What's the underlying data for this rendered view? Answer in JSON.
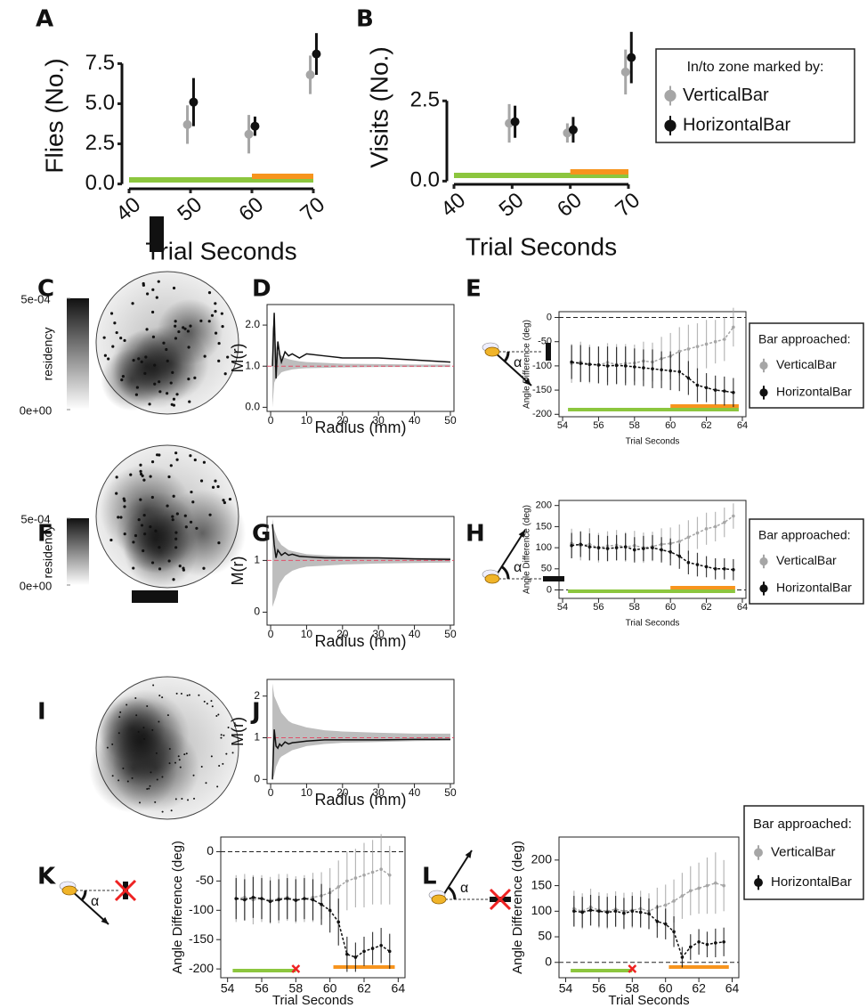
{
  "chart_data": [
    {
      "type": "errorbar",
      "panel": "A",
      "xlabel": "Trial Seconds",
      "ylabel": "Flies (No.)",
      "xlim": [
        40,
        70
      ],
      "ylim": [
        -0.3,
        8.8
      ],
      "xticks": [
        40,
        50,
        60,
        70
      ],
      "yticks": [
        {
          "value": 0,
          "label": "0.0"
        },
        {
          "value": 2.5,
          "label": "2.5"
        },
        {
          "value": 5,
          "label": "5.0"
        },
        {
          "value": 7.5,
          "label": "7.5"
        }
      ],
      "series": [
        {
          "color": "#a6a6a6",
          "x": [
            49.5,
            59.5,
            69.5
          ],
          "values": [
            3.7,
            3.1,
            6.8
          ],
          "errors": [
            1.2,
            1.2,
            1.2
          ]
        },
        {
          "color": "#111111",
          "x": [
            50.5,
            60.5,
            70.5
          ],
          "values": [
            5.1,
            3.6,
            8.1
          ],
          "errors": [
            1.5,
            0.6,
            1.3
          ]
        }
      ],
      "stimulus": [
        {
          "color": "#8cc63e",
          "start": 40,
          "end": 70
        },
        {
          "color": "#f7941d",
          "start": 60,
          "end": 70
        }
      ]
    },
    {
      "type": "errorbar",
      "panel": "B",
      "xlabel": "Trial Seconds",
      "ylabel": "Visits (No.)",
      "xlim": [
        40,
        70
      ],
      "ylim": [
        -0.1,
        4.7
      ],
      "xticks": [
        40,
        50,
        60,
        70
      ],
      "yticks": [
        {
          "value": 0,
          "label": "0.0"
        },
        {
          "value": 2.5,
          "label": "2.5"
        }
      ],
      "legend_title": "In/to zone marked by:",
      "series": [
        {
          "name": "VerticalBar",
          "color": "#a6a6a6",
          "x": [
            49.5,
            59.5,
            69.5
          ],
          "values": [
            1.8,
            1.5,
            3.4
          ],
          "errors": [
            0.6,
            0.3,
            0.7
          ]
        },
        {
          "name": "HorizontalBar",
          "color": "#111111",
          "x": [
            50.5,
            60.5,
            70.5
          ],
          "values": [
            1.85,
            1.6,
            3.85
          ],
          "errors": [
            0.5,
            0.4,
            0.8
          ]
        }
      ],
      "stimulus": [
        {
          "color": "#8cc63e",
          "start": 40,
          "end": 70
        },
        {
          "color": "#f7941d",
          "start": 60,
          "end": 70
        }
      ]
    },
    {
      "type": "heatmap",
      "panel": "C",
      "colorbar_label": "residency",
      "clim": [
        0,
        0.0005
      ],
      "colorbar_ticks": [
        {
          "value": 0.0005,
          "label": "5e-04"
        },
        {
          "value": 0,
          "label": "0e+00"
        }
      ]
    },
    {
      "type": "line",
      "panel": "D",
      "xlabel": "Radius (mm)",
      "ylabel": "M(r)",
      "xlim": [
        -1,
        51
      ],
      "ylim": [
        -0.1,
        2.5
      ],
      "xticks": [
        0,
        10,
        20,
        30,
        40,
        50
      ],
      "yticks": [
        {
          "value": 0,
          "label": "0.0"
        },
        {
          "value": 1,
          "label": "1.0"
        },
        {
          "value": 2,
          "label": "2.0"
        }
      ],
      "reference": 1,
      "x": [
        0.5,
        1,
        1.5,
        2,
        2.5,
        3,
        4,
        5,
        6,
        8,
        10,
        15,
        20,
        30,
        40,
        50
      ],
      "values": [
        1.0,
        2.3,
        0.7,
        1.6,
        1.3,
        1.1,
        1.35,
        1.25,
        1.3,
        1.2,
        1.3,
        1.25,
        1.2,
        1.2,
        1.15,
        1.1
      ],
      "lower": [
        0,
        0.6,
        0.7,
        0.75,
        0.8,
        0.85,
        0.88,
        0.9,
        0.92,
        0.94,
        0.95,
        0.96,
        0.97,
        0.98,
        0.98,
        0.98
      ],
      "upper": [
        2.0,
        1.7,
        1.5,
        1.35,
        1.3,
        1.25,
        1.2,
        1.17,
        1.15,
        1.12,
        1.1,
        1.08,
        1.06,
        1.05,
        1.04,
        1.04
      ]
    },
    {
      "type": "errorbar",
      "panel": "E",
      "annotation": "α",
      "xlabel": "Trial Seconds",
      "ylabel": "Angle Difference (deg)",
      "xlim": [
        53.8,
        64.2
      ],
      "ylim": [
        -205,
        12
      ],
      "xticks": [
        54,
        56,
        58,
        60,
        62,
        64
      ],
      "yticks": [
        0,
        -50,
        -100,
        -150,
        -200
      ],
      "reference": 0,
      "legend_title": "Bar approached:",
      "x": [
        54.5,
        55,
        55.5,
        56,
        56.5,
        57,
        57.5,
        58,
        58.5,
        59,
        59.5,
        60,
        60.5,
        61,
        61.5,
        62,
        62.5,
        63,
        63.5
      ],
      "series": [
        {
          "name": "VerticalBar",
          "color": "#a6a6a6",
          "values": [
            -95,
            -92,
            -96,
            -98,
            -93,
            -97,
            -95,
            -94,
            -90,
            -92,
            -85,
            -80,
            -70,
            -65,
            -60,
            -55,
            -50,
            -45,
            -20
          ],
          "errors": [
            40,
            42,
            40,
            38,
            40,
            42,
            40,
            38,
            40,
            40,
            45,
            48,
            50,
            50,
            48,
            50,
            45,
            45,
            40
          ]
        },
        {
          "name": "HorizontalBar",
          "color": "#111111",
          "values": [
            -92,
            -95,
            -97,
            -98,
            -100,
            -99,
            -100,
            -102,
            -104,
            -106,
            -108,
            -110,
            -112,
            -125,
            -140,
            -145,
            -150,
            -152,
            -155
          ],
          "errors": [
            35,
            38,
            36,
            38,
            40,
            38,
            40,
            38,
            38,
            40,
            38,
            40,
            40,
            35,
            35,
            30,
            30,
            30,
            30
          ]
        }
      ],
      "stimulus": [
        {
          "color": "#8cc63e",
          "start": 54.3,
          "end": 63.8
        },
        {
          "color": "#f7941d",
          "start": 60,
          "end": 63.8
        }
      ]
    },
    {
      "type": "heatmap",
      "panel": "F",
      "colorbar_label": "residency",
      "clim": [
        0,
        0.0005
      ],
      "colorbar_ticks": [
        {
          "value": 0.0005,
          "label": "5e-04"
        },
        {
          "value": 0,
          "label": "0e+00"
        }
      ]
    },
    {
      "type": "line",
      "panel": "G",
      "xlabel": "Radius (mm)",
      "ylabel": "M(r)",
      "xlim": [
        -1,
        51
      ],
      "ylim": [
        -0.25,
        1.85
      ],
      "xticks": [
        0,
        10,
        20,
        30,
        40,
        50
      ],
      "yticks": [
        0,
        1
      ],
      "reference": 1,
      "x": [
        0.5,
        1,
        1.5,
        2,
        2.5,
        3,
        4,
        5,
        6,
        8,
        10,
        15,
        20,
        30,
        40,
        50
      ],
      "values": [
        1.7,
        1.3,
        1.05,
        1.2,
        1.15,
        1.1,
        1.15,
        1.1,
        1.12,
        1.08,
        1.07,
        1.05,
        1.05,
        1.05,
        1.03,
        1.02
      ],
      "lower": [
        0.1,
        0.2,
        0.3,
        0.45,
        0.55,
        0.6,
        0.7,
        0.75,
        0.8,
        0.85,
        0.88,
        0.9,
        0.92,
        0.94,
        0.95,
        0.96
      ],
      "upper": [
        1.8,
        1.6,
        1.5,
        1.4,
        1.35,
        1.3,
        1.25,
        1.2,
        1.18,
        1.15,
        1.12,
        1.1,
        1.08,
        1.06,
        1.05,
        1.05
      ]
    },
    {
      "type": "errorbar",
      "panel": "H",
      "annotation": "α",
      "xlabel": "Trial Seconds",
      "ylabel": "Angle Difference (deg)",
      "xlim": [
        53.8,
        64.2
      ],
      "ylim": [
        -20,
        212
      ],
      "xticks": [
        54,
        56,
        58,
        60,
        62,
        64
      ],
      "yticks": [
        0,
        50,
        100,
        150,
        200
      ],
      "reference": 0,
      "legend_title": "Bar approached:",
      "x": [
        54.5,
        55,
        55.5,
        56,
        56.5,
        57,
        57.5,
        58,
        58.5,
        59,
        59.5,
        60,
        60.5,
        61,
        61.5,
        62,
        62.5,
        63,
        63.5
      ],
      "series": [
        {
          "name": "VerticalBar",
          "color": "#a6a6a6",
          "values": [
            110,
            105,
            108,
            100,
            104,
            106,
            102,
            105,
            100,
            103,
            108,
            110,
            115,
            125,
            135,
            145,
            150,
            160,
            175
          ],
          "errors": [
            35,
            35,
            38,
            35,
            35,
            36,
            35,
            35,
            36,
            35,
            38,
            38,
            40,
            40,
            38,
            38,
            35,
            35,
            30
          ]
        },
        {
          "name": "HorizontalBar",
          "color": "#111111",
          "values": [
            105,
            108,
            102,
            100,
            98,
            100,
            102,
            95,
            98,
            100,
            95,
            90,
            80,
            65,
            60,
            55,
            50,
            50,
            48
          ],
          "errors": [
            30,
            30,
            32,
            30,
            30,
            30,
            32,
            30,
            30,
            30,
            30,
            32,
            30,
            28,
            28,
            25,
            25,
            25,
            25
          ]
        }
      ],
      "stimulus": [
        {
          "color": "#8cc63e",
          "start": 54.3,
          "end": 63.6
        },
        {
          "color": "#f7941d",
          "start": 60,
          "end": 63.6
        }
      ]
    },
    {
      "type": "heatmap",
      "panel": "I"
    },
    {
      "type": "line",
      "panel": "J",
      "xlabel": "Radius (mm)",
      "ylabel": "M(r)",
      "xlim": [
        -1,
        51
      ],
      "ylim": [
        -0.1,
        2.4
      ],
      "xticks": [
        0,
        10,
        20,
        30,
        40,
        50
      ],
      "yticks": [
        0,
        1,
        2
      ],
      "reference": 1,
      "x": [
        0.5,
        1,
        1.5,
        2,
        2.5,
        3,
        4,
        5,
        6,
        8,
        10,
        15,
        20,
        30,
        40,
        50
      ],
      "values": [
        0,
        1.2,
        0.8,
        0.75,
        0.85,
        0.8,
        0.9,
        0.85,
        0.88,
        0.9,
        0.92,
        0.95,
        0.95,
        0.95,
        0.96,
        0.96
      ],
      "lower": [
        0,
        0.1,
        0.3,
        0.4,
        0.5,
        0.55,
        0.6,
        0.65,
        0.7,
        0.75,
        0.8,
        0.85,
        0.88,
        0.9,
        0.92,
        0.93
      ],
      "upper": [
        2.3,
        2.0,
        1.9,
        1.8,
        1.7,
        1.6,
        1.5,
        1.4,
        1.35,
        1.3,
        1.25,
        1.18,
        1.15,
        1.12,
        1.1,
        1.1
      ]
    },
    {
      "type": "errorbar",
      "panel": "K",
      "annotation": "α",
      "xlabel": "Trial Seconds",
      "ylabel": "Angle Difference (deg)",
      "xlim": [
        53.6,
        64.4
      ],
      "ylim": [
        -215,
        25
      ],
      "xticks": [
        54,
        56,
        58,
        60,
        62,
        64
      ],
      "yticks": [
        0,
        -50,
        -100,
        -150,
        -200
      ],
      "reference": 0,
      "stop_marker": 58,
      "x": [
        54.5,
        55,
        55.5,
        56,
        56.5,
        57,
        57.5,
        58,
        58.5,
        59,
        59.5,
        60,
        60.5,
        61,
        61.5,
        62,
        62.5,
        63,
        63.5
      ],
      "series": [
        {
          "color": "#a6a6a6",
          "values": [
            -80,
            -78,
            -82,
            -80,
            -83,
            -80,
            -78,
            -82,
            -80,
            -78,
            -75,
            -70,
            -60,
            -50,
            -45,
            -40,
            -35,
            -30,
            -40
          ],
          "errors": [
            40,
            40,
            42,
            40,
            40,
            42,
            40,
            40,
            40,
            42,
            40,
            42,
            45,
            50,
            50,
            55,
            55,
            60,
            50
          ]
        },
        {
          "color": "#111111",
          "values": [
            -80,
            -82,
            -78,
            -80,
            -85,
            -82,
            -80,
            -83,
            -80,
            -82,
            -90,
            -100,
            -120,
            -175,
            -180,
            -170,
            -165,
            -160,
            -170
          ],
          "errors": [
            35,
            35,
            35,
            35,
            36,
            35,
            35,
            36,
            35,
            35,
            35,
            38,
            40,
            30,
            25,
            25,
            28,
            30,
            30
          ]
        }
      ],
      "stimulus": [
        {
          "color": "#8cc63e",
          "start": 54.3,
          "end": 58
        },
        {
          "color": "#f7941d",
          "start": 60.2,
          "end": 63.8
        }
      ]
    },
    {
      "type": "errorbar",
      "panel": "L",
      "annotation": "α",
      "xlabel": "Trial Seconds",
      "ylabel": "Angle Difference (deg)",
      "xlim": [
        53.6,
        64.4
      ],
      "ylim": [
        -30,
        245
      ],
      "xticks": [
        54,
        56,
        58,
        60,
        62,
        64
      ],
      "yticks": [
        0,
        50,
        100,
        150,
        200
      ],
      "reference": 0,
      "stop_marker": 58,
      "legend_title": "Bar approached:",
      "x": [
        54.5,
        55,
        55.5,
        56,
        56.5,
        57,
        57.5,
        58,
        58.5,
        59,
        59.5,
        60,
        60.5,
        61,
        61.5,
        62,
        62.5,
        63,
        63.5
      ],
      "series": [
        {
          "name": "VerticalBar",
          "color": "#a6a6a6",
          "values": [
            105,
            100,
            108,
            102,
            100,
            104,
            100,
            102,
            105,
            100,
            108,
            112,
            120,
            130,
            140,
            145,
            150,
            155,
            150
          ],
          "errors": [
            35,
            35,
            36,
            35,
            35,
            35,
            36,
            35,
            35,
            35,
            38,
            40,
            42,
            45,
            48,
            50,
            55,
            60,
            50
          ]
        },
        {
          "name": "HorizontalBar",
          "color": "#111111",
          "values": [
            100,
            98,
            102,
            100,
            98,
            100,
            96,
            100,
            98,
            95,
            80,
            75,
            60,
            10,
            30,
            40,
            35,
            38,
            40
          ],
          "errors": [
            30,
            30,
            30,
            30,
            30,
            30,
            30,
            30,
            30,
            30,
            32,
            30,
            30,
            20,
            25,
            25,
            25,
            28,
            28
          ]
        }
      ],
      "stimulus": [
        {
          "color": "#8cc63e",
          "start": 54.3,
          "end": 58
        },
        {
          "color": "#f7941d",
          "start": 60.2,
          "end": 63.8
        }
      ]
    }
  ]
}
